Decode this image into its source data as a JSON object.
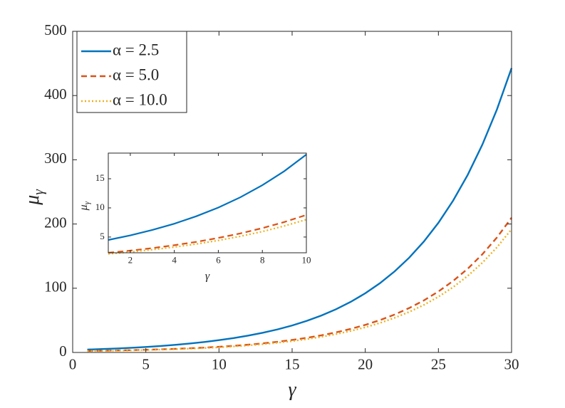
{
  "chart_data": [
    {
      "type": "line",
      "xlabel": "γ",
      "ylabel": "μ",
      "ylabel_sub": "γ",
      "x": [
        1,
        2,
        3,
        4,
        5,
        6,
        7,
        8,
        9,
        10,
        11,
        12,
        13,
        14,
        15,
        16,
        17,
        18,
        19,
        20,
        21,
        22,
        23,
        24,
        25,
        26,
        27,
        28,
        29,
        30
      ],
      "series": [
        {
          "name": "α = 2.5",
          "color": "#0072BD",
          "dash": "solid",
          "values": [
            4.5,
            5.29,
            6.21,
            7.29,
            8.57,
            10.06,
            11.82,
            13.89,
            16.31,
            19.16,
            22.42,
            26.23,
            30.69,
            35.91,
            42.01,
            49.15,
            57.51,
            67.28,
            78.73,
            92.11,
            107.8,
            126.1,
            147.5,
            172.6,
            201.9,
            236.3,
            276.4,
            323.4,
            378.4,
            442.7
          ]
        },
        {
          "name": "α = 5.0",
          "color": "#D95319",
          "dash": "dashed",
          "values": [
            2.3,
            2.67,
            3.1,
            3.6,
            4.17,
            4.85,
            5.62,
            6.53,
            7.58,
            8.79,
            10.31,
            12.07,
            14.15,
            16.58,
            19.43,
            22.78,
            26.68,
            31.28,
            36.64,
            42.95,
            50.34,
            58.97,
            69.13,
            80.97,
            94.92,
            111.3,
            130.3,
            152.8,
            179.0,
            209.8
          ]
        },
        {
          "name": "α = 10.0",
          "color": "#EDB120",
          "dash": "dotted",
          "values": [
            2.1,
            2.44,
            2.83,
            3.28,
            3.8,
            4.42,
            5.12,
            5.94,
            6.9,
            8.0,
            9.37,
            10.99,
            12.88,
            15.1,
            17.69,
            20.74,
            24.31,
            28.5,
            33.41,
            39.16,
            45.91,
            53.82,
            63.09,
            73.96,
            86.73,
            101.6,
            119.1,
            139.6,
            163.7,
            191.9
          ]
        }
      ],
      "xlim": [
        0,
        30
      ],
      "ylim": [
        0,
        500
      ],
      "xticks": [
        0,
        5,
        10,
        15,
        20,
        25,
        30
      ],
      "yticks": [
        0,
        100,
        200,
        300,
        400,
        500
      ],
      "legend": "upper left"
    },
    {
      "type": "line",
      "xlabel": "γ",
      "ylabel": "μ",
      "ylabel_sub": "γ",
      "x": [
        1,
        2,
        3,
        4,
        5,
        6,
        7,
        8,
        9,
        10
      ],
      "series": [
        {
          "color": "#0072BD",
          "dash": "solid",
          "values": [
            4.5,
            5.29,
            6.21,
            7.29,
            8.57,
            10.06,
            11.82,
            13.89,
            16.31,
            19.16
          ]
        },
        {
          "color": "#D95319",
          "dash": "dashed",
          "values": [
            2.3,
            2.67,
            3.1,
            3.6,
            4.17,
            4.85,
            5.62,
            6.53,
            7.58,
            8.79
          ]
        },
        {
          "color": "#EDB120",
          "dash": "dotted",
          "values": [
            2.1,
            2.44,
            2.83,
            3.28,
            3.8,
            4.42,
            5.12,
            5.94,
            6.9,
            8.0
          ]
        }
      ],
      "xlim": [
        1,
        10
      ],
      "ylim": [
        2.3,
        19.4
      ],
      "xticks": [
        2,
        4,
        6,
        8,
        10
      ],
      "yticks": [
        5,
        10,
        15
      ]
    }
  ]
}
